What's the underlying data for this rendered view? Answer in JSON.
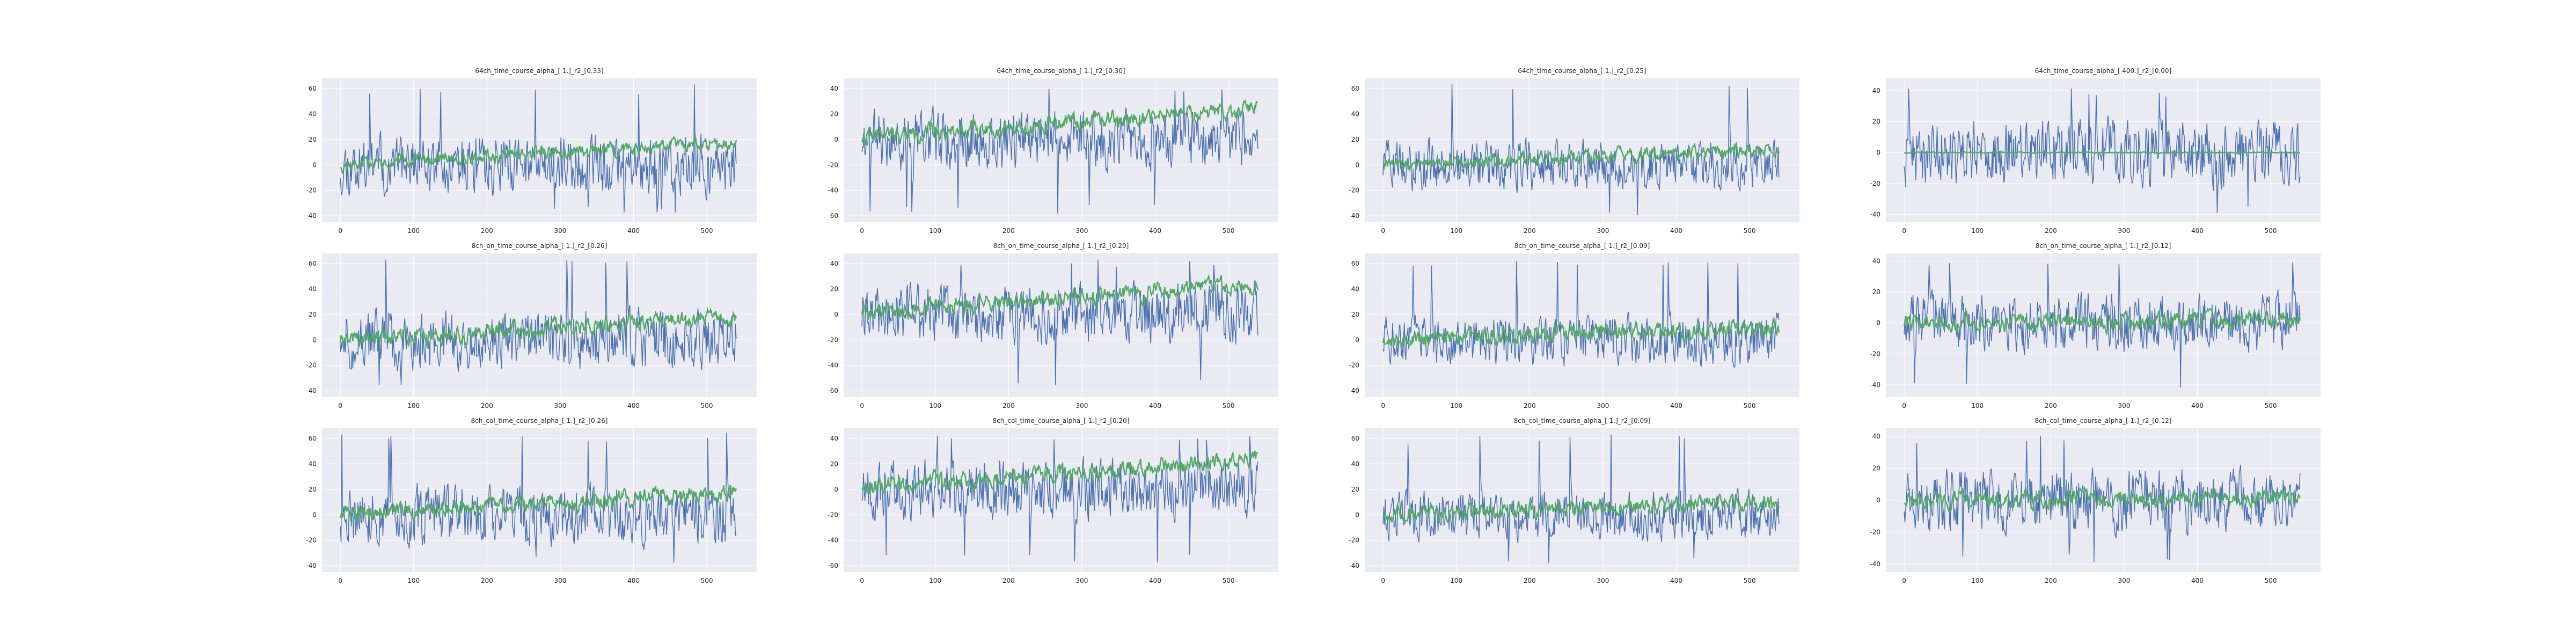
{
  "figure": {
    "background": "#ffffff",
    "axes_background": "#eaeaf2",
    "grid_color": "#ffffff"
  },
  "colors": {
    "signal": "#4c72b0",
    "smoothed": "#55a868"
  },
  "chart_data": [
    {
      "type": "line",
      "title": "64ch_time_course_alpha_[ 1.]_r2_[0.33]",
      "x_range": [
        0,
        540
      ],
      "ylim": [
        -45,
        68
      ],
      "yticks": [
        -40,
        -20,
        0,
        20,
        40,
        60
      ],
      "xticks": [
        0,
        100,
        200,
        300,
        400,
        500
      ],
      "grid": true,
      "series": [
        {
          "amplitude": 22,
          "spike_max": 65,
          "spike_min": -38,
          "seed": 11
        },
        {
          "trend_start": 0,
          "trend_end": 18,
          "noise": 4,
          "seed": 12
        }
      ]
    },
    {
      "type": "line",
      "title": "64ch_time_course_alpha_[ 1.]_r2_[0.30]",
      "x_range": [
        0,
        540
      ],
      "ylim": [
        -65,
        48
      ],
      "yticks": [
        -60,
        -40,
        -20,
        0,
        20,
        40
      ],
      "xticks": [
        0,
        100,
        200,
        300,
        400,
        500
      ],
      "grid": true,
      "series": [
        {
          "amplitude": 22,
          "spike_max": 44,
          "spike_min": -60,
          "seed": 21
        },
        {
          "trend_start": 2,
          "trend_end": 24,
          "noise": 5,
          "seed": 22
        }
      ]
    },
    {
      "type": "line",
      "title": "64ch_time_course_alpha_[ 1.]_r2_[0.25]",
      "x_range": [
        0,
        540
      ],
      "ylim": [
        -45,
        68
      ],
      "yticks": [
        -40,
        -20,
        0,
        20,
        40,
        60
      ],
      "xticks": [
        0,
        100,
        200,
        300,
        400,
        500
      ],
      "grid": true,
      "series": [
        {
          "amplitude": 18,
          "spike_max": 65,
          "spike_min": -40,
          "seed": 31
        },
        {
          "trend_start": 0,
          "trend_end": 12,
          "noise": 4,
          "seed": 32
        }
      ]
    },
    {
      "type": "line",
      "title": "64ch_time_course_alpha_[ 400.]_r2_[0.00]",
      "x_range": [
        0,
        540
      ],
      "ylim": [
        -45,
        48
      ],
      "yticks": [
        -40,
        -20,
        0,
        20,
        40
      ],
      "xticks": [
        0,
        100,
        200,
        300,
        400,
        500
      ],
      "grid": true,
      "series": [
        {
          "amplitude": 20,
          "spike_max": 42,
          "spike_min": -40,
          "seed": 41
        },
        {
          "trend_start": 0,
          "trend_end": 0,
          "noise": 0.3,
          "seed": 42
        }
      ]
    },
    {
      "type": "line",
      "title": "8ch_on_time_course_alpha_[ 1.]_r2_[0.26]",
      "x_range": [
        0,
        540
      ],
      "ylim": [
        -45,
        68
      ],
      "yticks": [
        -40,
        -20,
        0,
        20,
        40,
        60
      ],
      "xticks": [
        0,
        100,
        200,
        300,
        400,
        500
      ],
      "grid": true,
      "series": [
        {
          "amplitude": 22,
          "spike_max": 65,
          "spike_min": -38,
          "seed": 51
        },
        {
          "trend_start": 0,
          "trend_end": 18,
          "noise": 5,
          "seed": 52
        }
      ]
    },
    {
      "type": "line",
      "title": "8ch_on_time_course_alpha_[ 1.]_r2_[0.20]",
      "x_range": [
        0,
        540
      ],
      "ylim": [
        -65,
        48
      ],
      "yticks": [
        -60,
        -40,
        -20,
        0,
        20,
        40
      ],
      "xticks": [
        0,
        100,
        200,
        300,
        400,
        500
      ],
      "grid": true,
      "series": [
        {
          "amplitude": 22,
          "spike_max": 44,
          "spike_min": -60,
          "seed": 61
        },
        {
          "trend_start": 2,
          "trend_end": 24,
          "noise": 5,
          "seed": 62
        }
      ]
    },
    {
      "type": "line",
      "title": "8ch_on_time_course_alpha_[ 1.]_r2_[0.09]",
      "x_range": [
        0,
        540
      ],
      "ylim": [
        -45,
        68
      ],
      "yticks": [
        -40,
        -20,
        0,
        20,
        40,
        60
      ],
      "xticks": [
        0,
        100,
        200,
        300,
        400,
        500
      ],
      "grid": true,
      "series": [
        {
          "amplitude": 18,
          "spike_max": 65,
          "spike_min": -40,
          "seed": 71
        },
        {
          "trend_start": 0,
          "trend_end": 10,
          "noise": 5,
          "seed": 72
        }
      ]
    },
    {
      "type": "line",
      "title": "8ch_on_time_course_alpha_[ 1.]_r2_[0.12]",
      "x_range": [
        0,
        540
      ],
      "ylim": [
        -48,
        45
      ],
      "yticks": [
        -40,
        -20,
        0,
        20,
        40
      ],
      "xticks": [
        0,
        100,
        200,
        300,
        400,
        500
      ],
      "grid": true,
      "series": [
        {
          "amplitude": 18,
          "spike_max": 42,
          "spike_min": -45,
          "seed": 81
        },
        {
          "trend_start": 0,
          "trend_end": 2,
          "noise": 4,
          "seed": 82
        }
      ]
    },
    {
      "type": "line",
      "title": "8ch_col_time_course_alpha_[ 1.]_r2_[0.26]",
      "x_range": [
        0,
        540
      ],
      "ylim": [
        -45,
        68
      ],
      "yticks": [
        -40,
        -20,
        0,
        20,
        40,
        60
      ],
      "xticks": [
        0,
        100,
        200,
        300,
        400,
        500
      ],
      "grid": true,
      "series": [
        {
          "amplitude": 22,
          "spike_max": 65,
          "spike_min": -38,
          "seed": 91
        },
        {
          "trend_start": 0,
          "trend_end": 18,
          "noise": 5,
          "seed": 92
        }
      ]
    },
    {
      "type": "line",
      "title": "8ch_col_time_course_alpha_[ 1.]_r2_[0.20]",
      "x_range": [
        0,
        540
      ],
      "ylim": [
        -65,
        48
      ],
      "yticks": [
        -60,
        -40,
        -20,
        0,
        20,
        40
      ],
      "xticks": [
        0,
        100,
        200,
        300,
        400,
        500
      ],
      "grid": true,
      "series": [
        {
          "amplitude": 22,
          "spike_max": 44,
          "spike_min": -60,
          "seed": 101
        },
        {
          "trend_start": 2,
          "trend_end": 24,
          "noise": 5,
          "seed": 102
        }
      ]
    },
    {
      "type": "line",
      "title": "8ch_col_time_course_alpha_[ 1.]_r2_[0.09]",
      "x_range": [
        0,
        540
      ],
      "ylim": [
        -45,
        68
      ],
      "yticks": [
        -40,
        -20,
        0,
        20,
        40,
        60
      ],
      "xticks": [
        0,
        100,
        200,
        300,
        400,
        500
      ],
      "grid": true,
      "series": [
        {
          "amplitude": 18,
          "spike_max": 65,
          "spike_min": -40,
          "seed": 111
        },
        {
          "trend_start": 0,
          "trend_end": 10,
          "noise": 5,
          "seed": 112
        }
      ]
    },
    {
      "type": "line",
      "title": "8ch_col_time_course_alpha_[ 1.]_r2_[0.12]",
      "x_range": [
        0,
        540
      ],
      "ylim": [
        -45,
        45
      ],
      "yticks": [
        -40,
        -20,
        0,
        20,
        40
      ],
      "xticks": [
        0,
        100,
        200,
        300,
        400,
        500
      ],
      "grid": true,
      "series": [
        {
          "amplitude": 18,
          "spike_max": 42,
          "spike_min": -40,
          "seed": 121
        },
        {
          "trend_start": 0,
          "trend_end": 2,
          "noise": 4,
          "seed": 122
        }
      ]
    }
  ]
}
